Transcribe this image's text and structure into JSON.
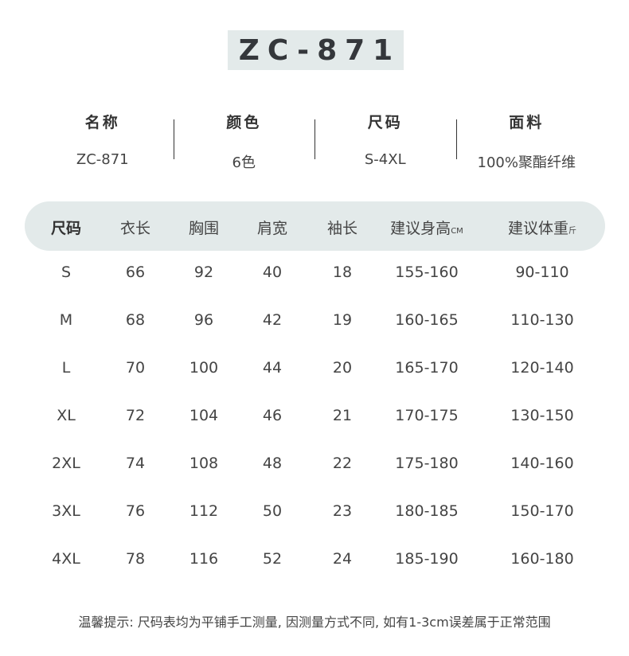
{
  "title": "ZC-871",
  "info": [
    {
      "label": "名称",
      "value": "ZC-871"
    },
    {
      "label": "颜色",
      "value": "6色"
    },
    {
      "label": "尺码",
      "value": "S-4XL"
    },
    {
      "label": "面料",
      "value": "100%聚酯纤维"
    }
  ],
  "table": {
    "headers": [
      {
        "label": "尺码",
        "unit": ""
      },
      {
        "label": "衣长",
        "unit": ""
      },
      {
        "label": "胸围",
        "unit": ""
      },
      {
        "label": "肩宽",
        "unit": ""
      },
      {
        "label": "袖长",
        "unit": ""
      },
      {
        "label": "建议身高",
        "unit": "CM"
      },
      {
        "label": "建议体重",
        "unit": "斤"
      }
    ],
    "rows": [
      [
        "S",
        "66",
        "92",
        "40",
        "18",
        "155-160",
        "90-110"
      ],
      [
        "M",
        "68",
        "96",
        "42",
        "19",
        "160-165",
        "110-130"
      ],
      [
        "L",
        "70",
        "100",
        "44",
        "20",
        "165-170",
        "120-140"
      ],
      [
        "XL",
        "72",
        "104",
        "46",
        "21",
        "170-175",
        "130-150"
      ],
      [
        "2XL",
        "74",
        "108",
        "48",
        "22",
        "175-180",
        "140-160"
      ],
      [
        "3XL",
        "76",
        "112",
        "50",
        "23",
        "180-185",
        "150-170"
      ],
      [
        "4XL",
        "78",
        "116",
        "52",
        "24",
        "185-190",
        "160-180"
      ]
    ]
  },
  "note": "温馨提示: 尺码表均为平铺手工测量, 因测量方式不同, 如有1-3cm误差属于正常范围",
  "colors": {
    "header_bg": "#e3eaea",
    "text": "#444444"
  }
}
